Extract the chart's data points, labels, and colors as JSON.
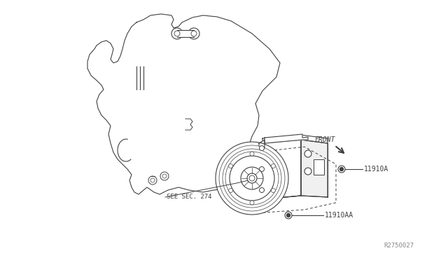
{
  "bg_color": "#ffffff",
  "line_color": "#404040",
  "see_sec_label": "SEE SEC. 274",
  "front_label": "FRONT",
  "ref_label": "R2750027",
  "label_11910A": "11910A",
  "label_11910AA": "11910AA"
}
